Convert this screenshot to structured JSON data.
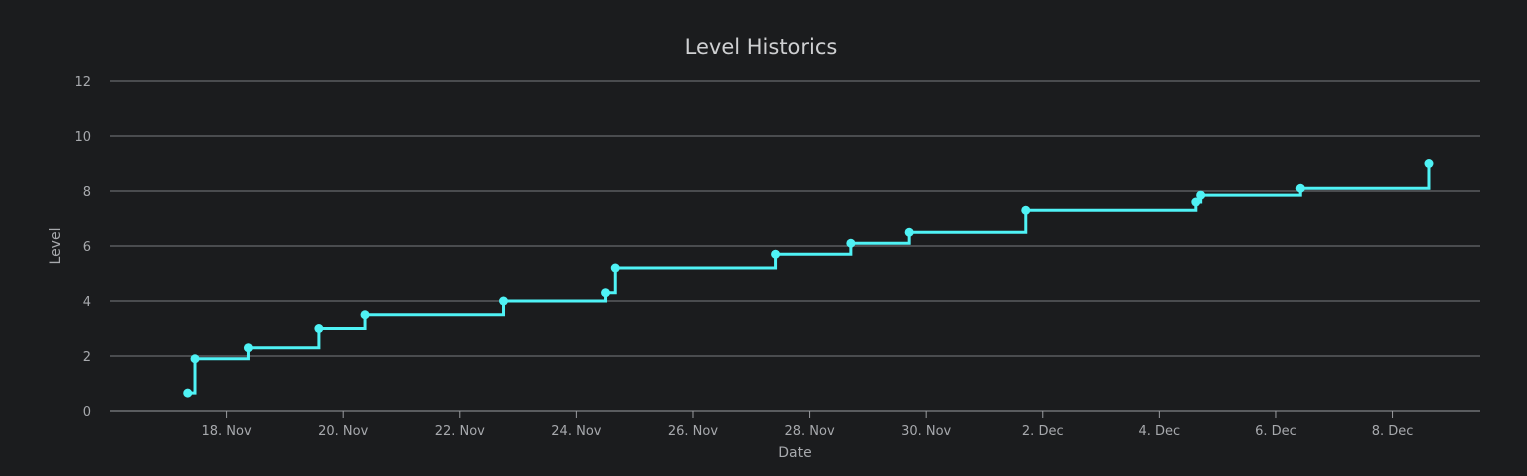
{
  "chart_data": {
    "type": "line",
    "step": true,
    "title": "Level Historics",
    "xlabel": "Date",
    "ylabel": "Level",
    "ylim": [
      0,
      12
    ],
    "y_ticks": [
      0,
      2,
      4,
      6,
      8,
      10,
      12
    ],
    "xlim": [
      "2023-11-16T00:00",
      "2023-12-09T12:00"
    ],
    "x_ticks": [
      {
        "date": "2023-11-18",
        "label": "18. Nov"
      },
      {
        "date": "2023-11-20",
        "label": "20. Nov"
      },
      {
        "date": "2023-11-22",
        "label": "22. Nov"
      },
      {
        "date": "2023-11-24",
        "label": "24. Nov"
      },
      {
        "date": "2023-11-26",
        "label": "26. Nov"
      },
      {
        "date": "2023-11-28",
        "label": "28. Nov"
      },
      {
        "date": "2023-11-30",
        "label": "30. Nov"
      },
      {
        "date": "2023-12-02",
        "label": "2. Dec"
      },
      {
        "date": "2023-12-04",
        "label": "4. Dec"
      },
      {
        "date": "2023-12-06",
        "label": "6. Dec"
      },
      {
        "date": "2023-12-08",
        "label": "8. Dec"
      }
    ],
    "grid": true,
    "color": "#4ff2f5",
    "series": [
      {
        "points": [
          {
            "x": "2023-11-17T08:00",
            "y": 0.65
          },
          {
            "x": "2023-11-17T11:00",
            "y": 1.9
          },
          {
            "x": "2023-11-18T09:00",
            "y": 2.3
          },
          {
            "x": "2023-11-19T14:00",
            "y": 3.0
          },
          {
            "x": "2023-11-20T09:00",
            "y": 3.5
          },
          {
            "x": "2023-11-22T18:00",
            "y": 4.0
          },
          {
            "x": "2023-11-24T12:00",
            "y": 4.3
          },
          {
            "x": "2023-11-24T16:00",
            "y": 5.2
          },
          {
            "x": "2023-11-27T10:00",
            "y": 5.7
          },
          {
            "x": "2023-11-28T17:00",
            "y": 6.1
          },
          {
            "x": "2023-11-29T17:00",
            "y": 6.5
          },
          {
            "x": "2023-12-01T17:00",
            "y": 7.3
          },
          {
            "x": "2023-12-04T15:00",
            "y": 7.6
          },
          {
            "x": "2023-12-04T17:00",
            "y": 7.85
          },
          {
            "x": "2023-12-06T10:00",
            "y": 8.1
          },
          {
            "x": "2023-12-08T15:00",
            "y": 9.0
          }
        ]
      }
    ]
  }
}
